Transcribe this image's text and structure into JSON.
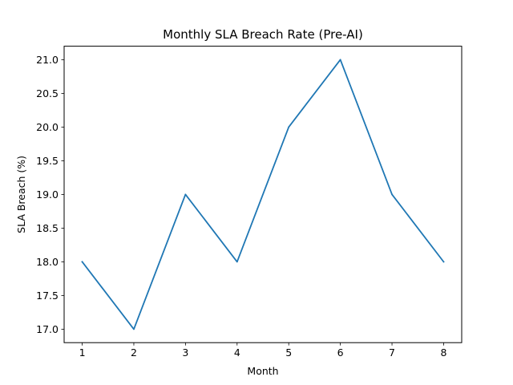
{
  "chart_data": {
    "type": "line",
    "title": "Monthly SLA Breach Rate (Pre-AI)",
    "xlabel": "Month",
    "ylabel": "SLA Breach (%)",
    "x": [
      1,
      2,
      3,
      4,
      5,
      6,
      7,
      8
    ],
    "series": [
      {
        "values": [
          18,
          17,
          19,
          18,
          20,
          21,
          19,
          18
        ],
        "color": "#1f77b4"
      }
    ],
    "xlim": [
      0.65,
      8.35
    ],
    "ylim": [
      16.8,
      21.2
    ],
    "xticks": [
      "1",
      "2",
      "3",
      "4",
      "5",
      "6",
      "7",
      "8"
    ],
    "yticks": [
      "17.0",
      "17.5",
      "18.0",
      "18.5",
      "19.0",
      "19.5",
      "20.0",
      "20.5",
      "21.0"
    ],
    "grid": false,
    "legend": "none"
  }
}
